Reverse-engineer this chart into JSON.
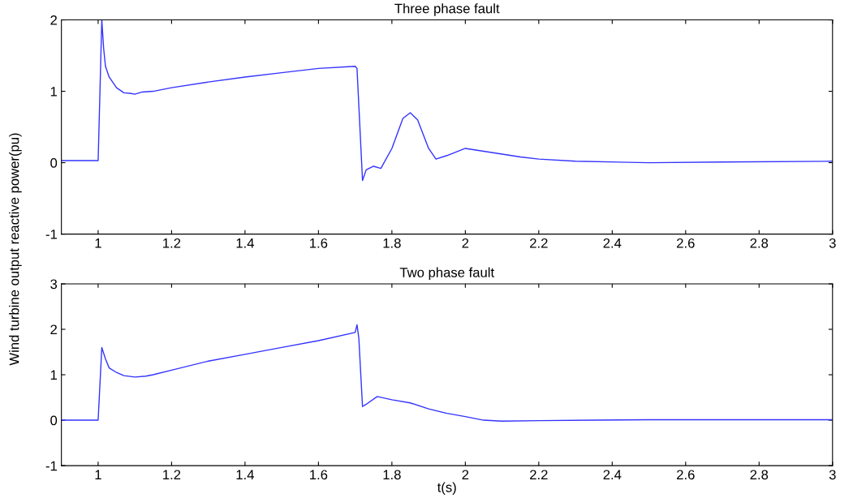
{
  "chart_data": [
    {
      "type": "line",
      "title": "Three phase fault",
      "ylabel": "Wind turbine output reactive power(pu)",
      "xlim": [
        0.9,
        3
      ],
      "xticks": [
        1,
        1.2,
        1.4,
        1.6,
        1.8,
        2,
        2.2,
        2.4,
        2.6,
        2.8,
        3
      ],
      "ylim": [
        -1,
        2
      ],
      "yticks": [
        -1,
        0,
        1,
        2
      ],
      "grid": false,
      "legend": false,
      "series": [
        {
          "color": "#3333ff",
          "x": [
            0.9,
            1.0,
            1.005,
            1.01,
            1.015,
            1.02,
            1.03,
            1.05,
            1.07,
            1.09,
            1.1,
            1.12,
            1.15,
            1.2,
            1.3,
            1.4,
            1.5,
            1.6,
            1.7,
            1.705,
            1.72,
            1.73,
            1.75,
            1.77,
            1.8,
            1.83,
            1.85,
            1.87,
            1.9,
            1.92,
            1.95,
            2.0,
            2.05,
            2.1,
            2.15,
            2.2,
            2.3,
            2.5,
            2.7,
            3.0
          ],
          "values": [
            0.03,
            0.03,
            1.0,
            2.0,
            1.6,
            1.35,
            1.2,
            1.05,
            0.98,
            0.97,
            0.96,
            0.99,
            1.0,
            1.05,
            1.13,
            1.2,
            1.26,
            1.32,
            1.35,
            1.32,
            -0.25,
            -0.1,
            -0.05,
            -0.08,
            0.2,
            0.62,
            0.7,
            0.6,
            0.2,
            0.05,
            0.1,
            0.2,
            0.16,
            0.12,
            0.08,
            0.05,
            0.02,
            0.0,
            0.01,
            0.02
          ]
        }
      ]
    },
    {
      "type": "line",
      "title": "Two phase fault",
      "xlabel": "t(s)",
      "xlim": [
        0.9,
        3
      ],
      "xticks": [
        1,
        1.2,
        1.4,
        1.6,
        1.8,
        2,
        2.2,
        2.4,
        2.6,
        2.8,
        3
      ],
      "ylim": [
        -1,
        3
      ],
      "yticks": [
        -1,
        0,
        1,
        2,
        3
      ],
      "grid": false,
      "legend": false,
      "series": [
        {
          "color": "#3333ff",
          "x": [
            0.9,
            1.0,
            1.005,
            1.01,
            1.02,
            1.03,
            1.05,
            1.07,
            1.1,
            1.13,
            1.15,
            1.2,
            1.3,
            1.4,
            1.5,
            1.6,
            1.7,
            1.705,
            1.71,
            1.72,
            1.73,
            1.76,
            1.8,
            1.85,
            1.9,
            1.95,
            2.0,
            2.05,
            2.1,
            2.2,
            2.35,
            2.5,
            3.0
          ],
          "values": [
            0.0,
            0.0,
            0.8,
            1.6,
            1.35,
            1.15,
            1.05,
            0.98,
            0.95,
            0.97,
            1.0,
            1.1,
            1.3,
            1.45,
            1.6,
            1.75,
            1.93,
            2.1,
            1.8,
            0.3,
            0.35,
            0.52,
            0.45,
            0.38,
            0.25,
            0.15,
            0.08,
            0.0,
            -0.02,
            -0.01,
            0.0,
            0.01,
            0.01
          ]
        }
      ]
    }
  ]
}
